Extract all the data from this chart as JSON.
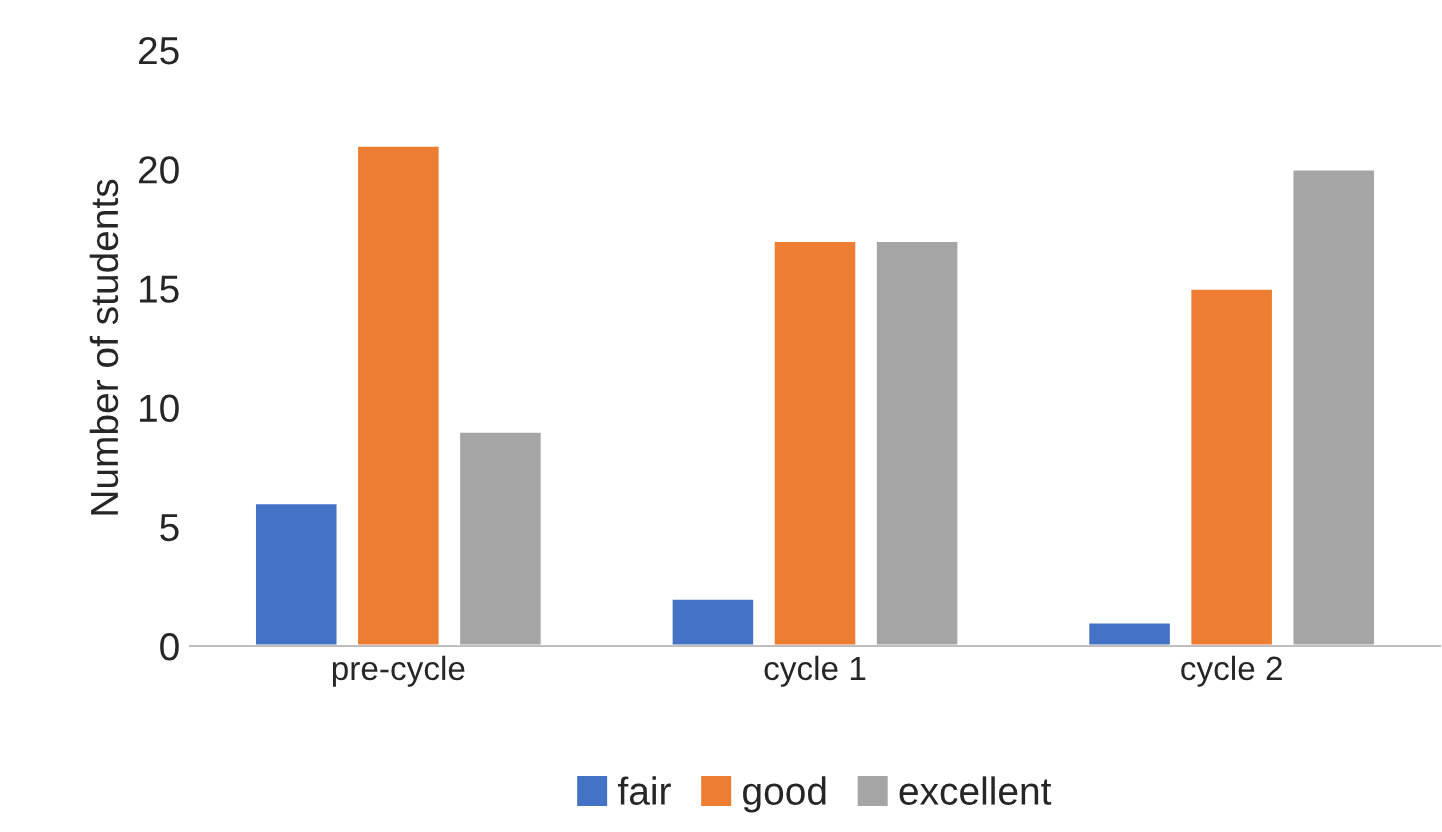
{
  "chart_data": {
    "type": "bar",
    "ylabel": "Number of students",
    "categories": [
      "pre-cycle",
      "cycle 1",
      "cycle 2"
    ],
    "series": [
      {
        "name": "fair",
        "color": "#4472c4",
        "values": [
          6,
          2,
          1
        ]
      },
      {
        "name": "good",
        "color": "#ed7d31",
        "values": [
          21,
          17,
          15
        ]
      },
      {
        "name": "excellent",
        "color": "#a5a5a5",
        "values": [
          9,
          17,
          20
        ]
      }
    ],
    "ylim": [
      0,
      25
    ],
    "yticks": [
      0,
      5,
      10,
      15,
      20,
      25
    ],
    "grid": false,
    "legend": "bottom"
  }
}
